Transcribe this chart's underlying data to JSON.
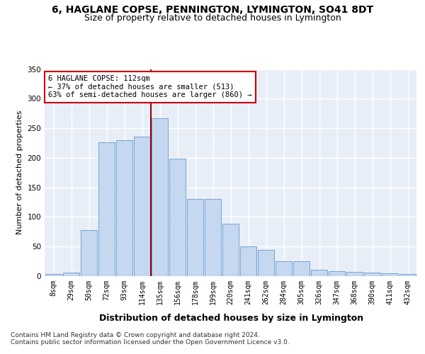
{
  "title": "6, HAGLANE COPSE, PENNINGTON, LYMINGTON, SO41 8DT",
  "subtitle": "Size of property relative to detached houses in Lymington",
  "xlabel": "Distribution of detached houses by size in Lymington",
  "ylabel": "Number of detached properties",
  "categories": [
    "8sqm",
    "29sqm",
    "50sqm",
    "72sqm",
    "93sqm",
    "114sqm",
    "135sqm",
    "156sqm",
    "178sqm",
    "199sqm",
    "220sqm",
    "241sqm",
    "262sqm",
    "284sqm",
    "305sqm",
    "326sqm",
    "347sqm",
    "368sqm",
    "390sqm",
    "411sqm",
    "432sqm"
  ],
  "bar_heights": [
    3,
    6,
    78,
    226,
    230,
    236,
    267,
    199,
    130,
    130,
    88,
    50,
    44,
    25,
    25,
    11,
    8,
    7,
    6,
    5,
    4
  ],
  "bar_color": "#c5d8f0",
  "bar_edge_color": "#6699cc",
  "ref_line_x": 5.5,
  "ref_line_color": "#990000",
  "annotation_text": "6 HAGLANE COPSE: 112sqm\n← 37% of detached houses are smaller (513)\n63% of semi-detached houses are larger (860) →",
  "annotation_box_color": "#ffffff",
  "annotation_box_edge_color": "#cc0000",
  "ylim": [
    0,
    350
  ],
  "yticks": [
    0,
    50,
    100,
    150,
    200,
    250,
    300,
    350
  ],
  "background_color": "#e8eef8",
  "grid_color": "#ffffff",
  "footer_line1": "Contains HM Land Registry data © Crown copyright and database right 2024.",
  "footer_line2": "Contains public sector information licensed under the Open Government Licence v3.0.",
  "title_fontsize": 10,
  "subtitle_fontsize": 9,
  "xlabel_fontsize": 9,
  "ylabel_fontsize": 8,
  "tick_fontsize": 7,
  "footer_fontsize": 6.5,
  "annot_fontsize": 7.5
}
